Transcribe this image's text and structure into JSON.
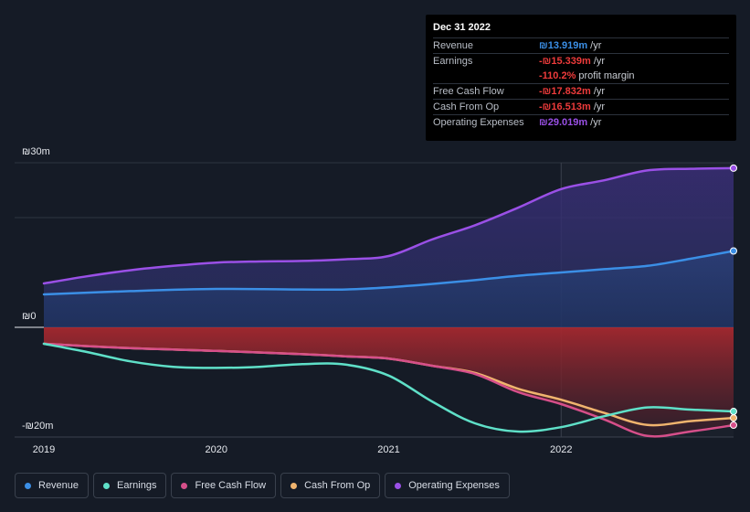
{
  "chart_data": {
    "type": "area",
    "ylim": [
      -20,
      30
    ],
    "y_ticks": [
      {
        "value": 30,
        "label": "₪30m"
      },
      {
        "value": 0,
        "label": "₪0"
      },
      {
        "value": -20,
        "label": "-₪20m"
      }
    ],
    "x_ticks": [
      {
        "value": 2019.0,
        "label": "2019"
      },
      {
        "value": 2020.0,
        "label": "2020"
      },
      {
        "value": 2021.0,
        "label": "2021"
      },
      {
        "value": 2022.0,
        "label": "2022"
      }
    ],
    "highlight_x": 2022.0,
    "series": [
      {
        "name": "Revenue",
        "color": "#3b8fe6",
        "x": [
          2019.0,
          2019.5,
          2020.0,
          2020.5,
          2020.75,
          2021.0,
          2021.25,
          2021.5,
          2021.75,
          2022.0,
          2022.25,
          2022.5,
          2022.75,
          2023.0
        ],
        "y": [
          6.0,
          6.6,
          7.0,
          6.9,
          6.9,
          7.3,
          7.9,
          8.6,
          9.4,
          10.0,
          10.6,
          11.2,
          12.5,
          13.919
        ]
      },
      {
        "name": "Earnings",
        "color": "#5fe0c8",
        "x": [
          2019.0,
          2019.25,
          2019.5,
          2019.75,
          2020.0,
          2020.25,
          2020.5,
          2020.75,
          2021.0,
          2021.25,
          2021.5,
          2021.75,
          2022.0,
          2022.25,
          2022.5,
          2022.75,
          2023.0
        ],
        "y": [
          -3.0,
          -4.5,
          -6.2,
          -7.2,
          -7.4,
          -7.2,
          -6.7,
          -6.8,
          -8.8,
          -13.5,
          -17.5,
          -19.0,
          -18.2,
          -16.2,
          -14.6,
          -15.0,
          -15.339
        ]
      },
      {
        "name": "Free Cash Flow",
        "color": "#d64f8a",
        "x": [
          2019.0,
          2019.5,
          2020.0,
          2020.5,
          2020.75,
          2021.0,
          2021.25,
          2021.5,
          2021.75,
          2022.0,
          2022.25,
          2022.5,
          2022.75,
          2023.0
        ],
        "y": [
          -3.0,
          -3.8,
          -4.3,
          -4.9,
          -5.3,
          -5.7,
          -7.0,
          -8.5,
          -11.8,
          -14.0,
          -16.8,
          -19.8,
          -19.0,
          -17.832
        ]
      },
      {
        "name": "Cash From Op",
        "color": "#f0b46e",
        "x": [
          2019.0,
          2019.5,
          2020.0,
          2020.5,
          2020.75,
          2021.0,
          2021.25,
          2021.5,
          2021.75,
          2022.0,
          2022.25,
          2022.5,
          2022.75,
          2023.0
        ],
        "y": [
          -3.0,
          -3.8,
          -4.3,
          -4.9,
          -5.3,
          -5.7,
          -7.0,
          -8.3,
          -11.2,
          -13.2,
          -15.6,
          -17.8,
          -17.1,
          -16.513
        ]
      },
      {
        "name": "Operating Expenses",
        "color": "#9a50e6",
        "x": [
          2019.0,
          2019.25,
          2019.5,
          2019.75,
          2020.0,
          2020.25,
          2020.5,
          2020.75,
          2021.0,
          2021.25,
          2021.5,
          2021.75,
          2022.0,
          2022.25,
          2022.5,
          2022.75,
          2023.0
        ],
        "y": [
          8.0,
          9.3,
          10.4,
          11.2,
          11.8,
          12.0,
          12.1,
          12.4,
          13.0,
          16.0,
          18.6,
          21.8,
          25.2,
          26.8,
          28.6,
          28.9,
          29.019
        ]
      }
    ]
  },
  "tooltip": {
    "date": "Dec 31 2022",
    "rows": [
      {
        "label": "Revenue",
        "value": "₪13.919m",
        "unit": "/yr",
        "color": "#3b8fe6"
      },
      {
        "label": "Earnings",
        "value": "-₪15.339m",
        "unit": "/yr",
        "color": "#ee3b3b"
      },
      {
        "label": "",
        "value": "-110.2%",
        "unit": "profit margin",
        "color": "#ee3b3b"
      },
      {
        "label": "Free Cash Flow",
        "value": "-₪17.832m",
        "unit": "/yr",
        "color": "#ee3b3b"
      },
      {
        "label": "Cash From Op",
        "value": "-₪16.513m",
        "unit": "/yr",
        "color": "#ee3b3b"
      },
      {
        "label": "Operating Expenses",
        "value": "₪29.019m",
        "unit": "/yr",
        "color": "#9a50e6"
      }
    ]
  },
  "legend": [
    {
      "label": "Revenue",
      "color": "#3b8fe6"
    },
    {
      "label": "Earnings",
      "color": "#5fe0c8"
    },
    {
      "label": "Free Cash Flow",
      "color": "#d64f8a"
    },
    {
      "label": "Cash From Op",
      "color": "#f0b46e"
    },
    {
      "label": "Operating Expenses",
      "color": "#9a50e6"
    }
  ]
}
